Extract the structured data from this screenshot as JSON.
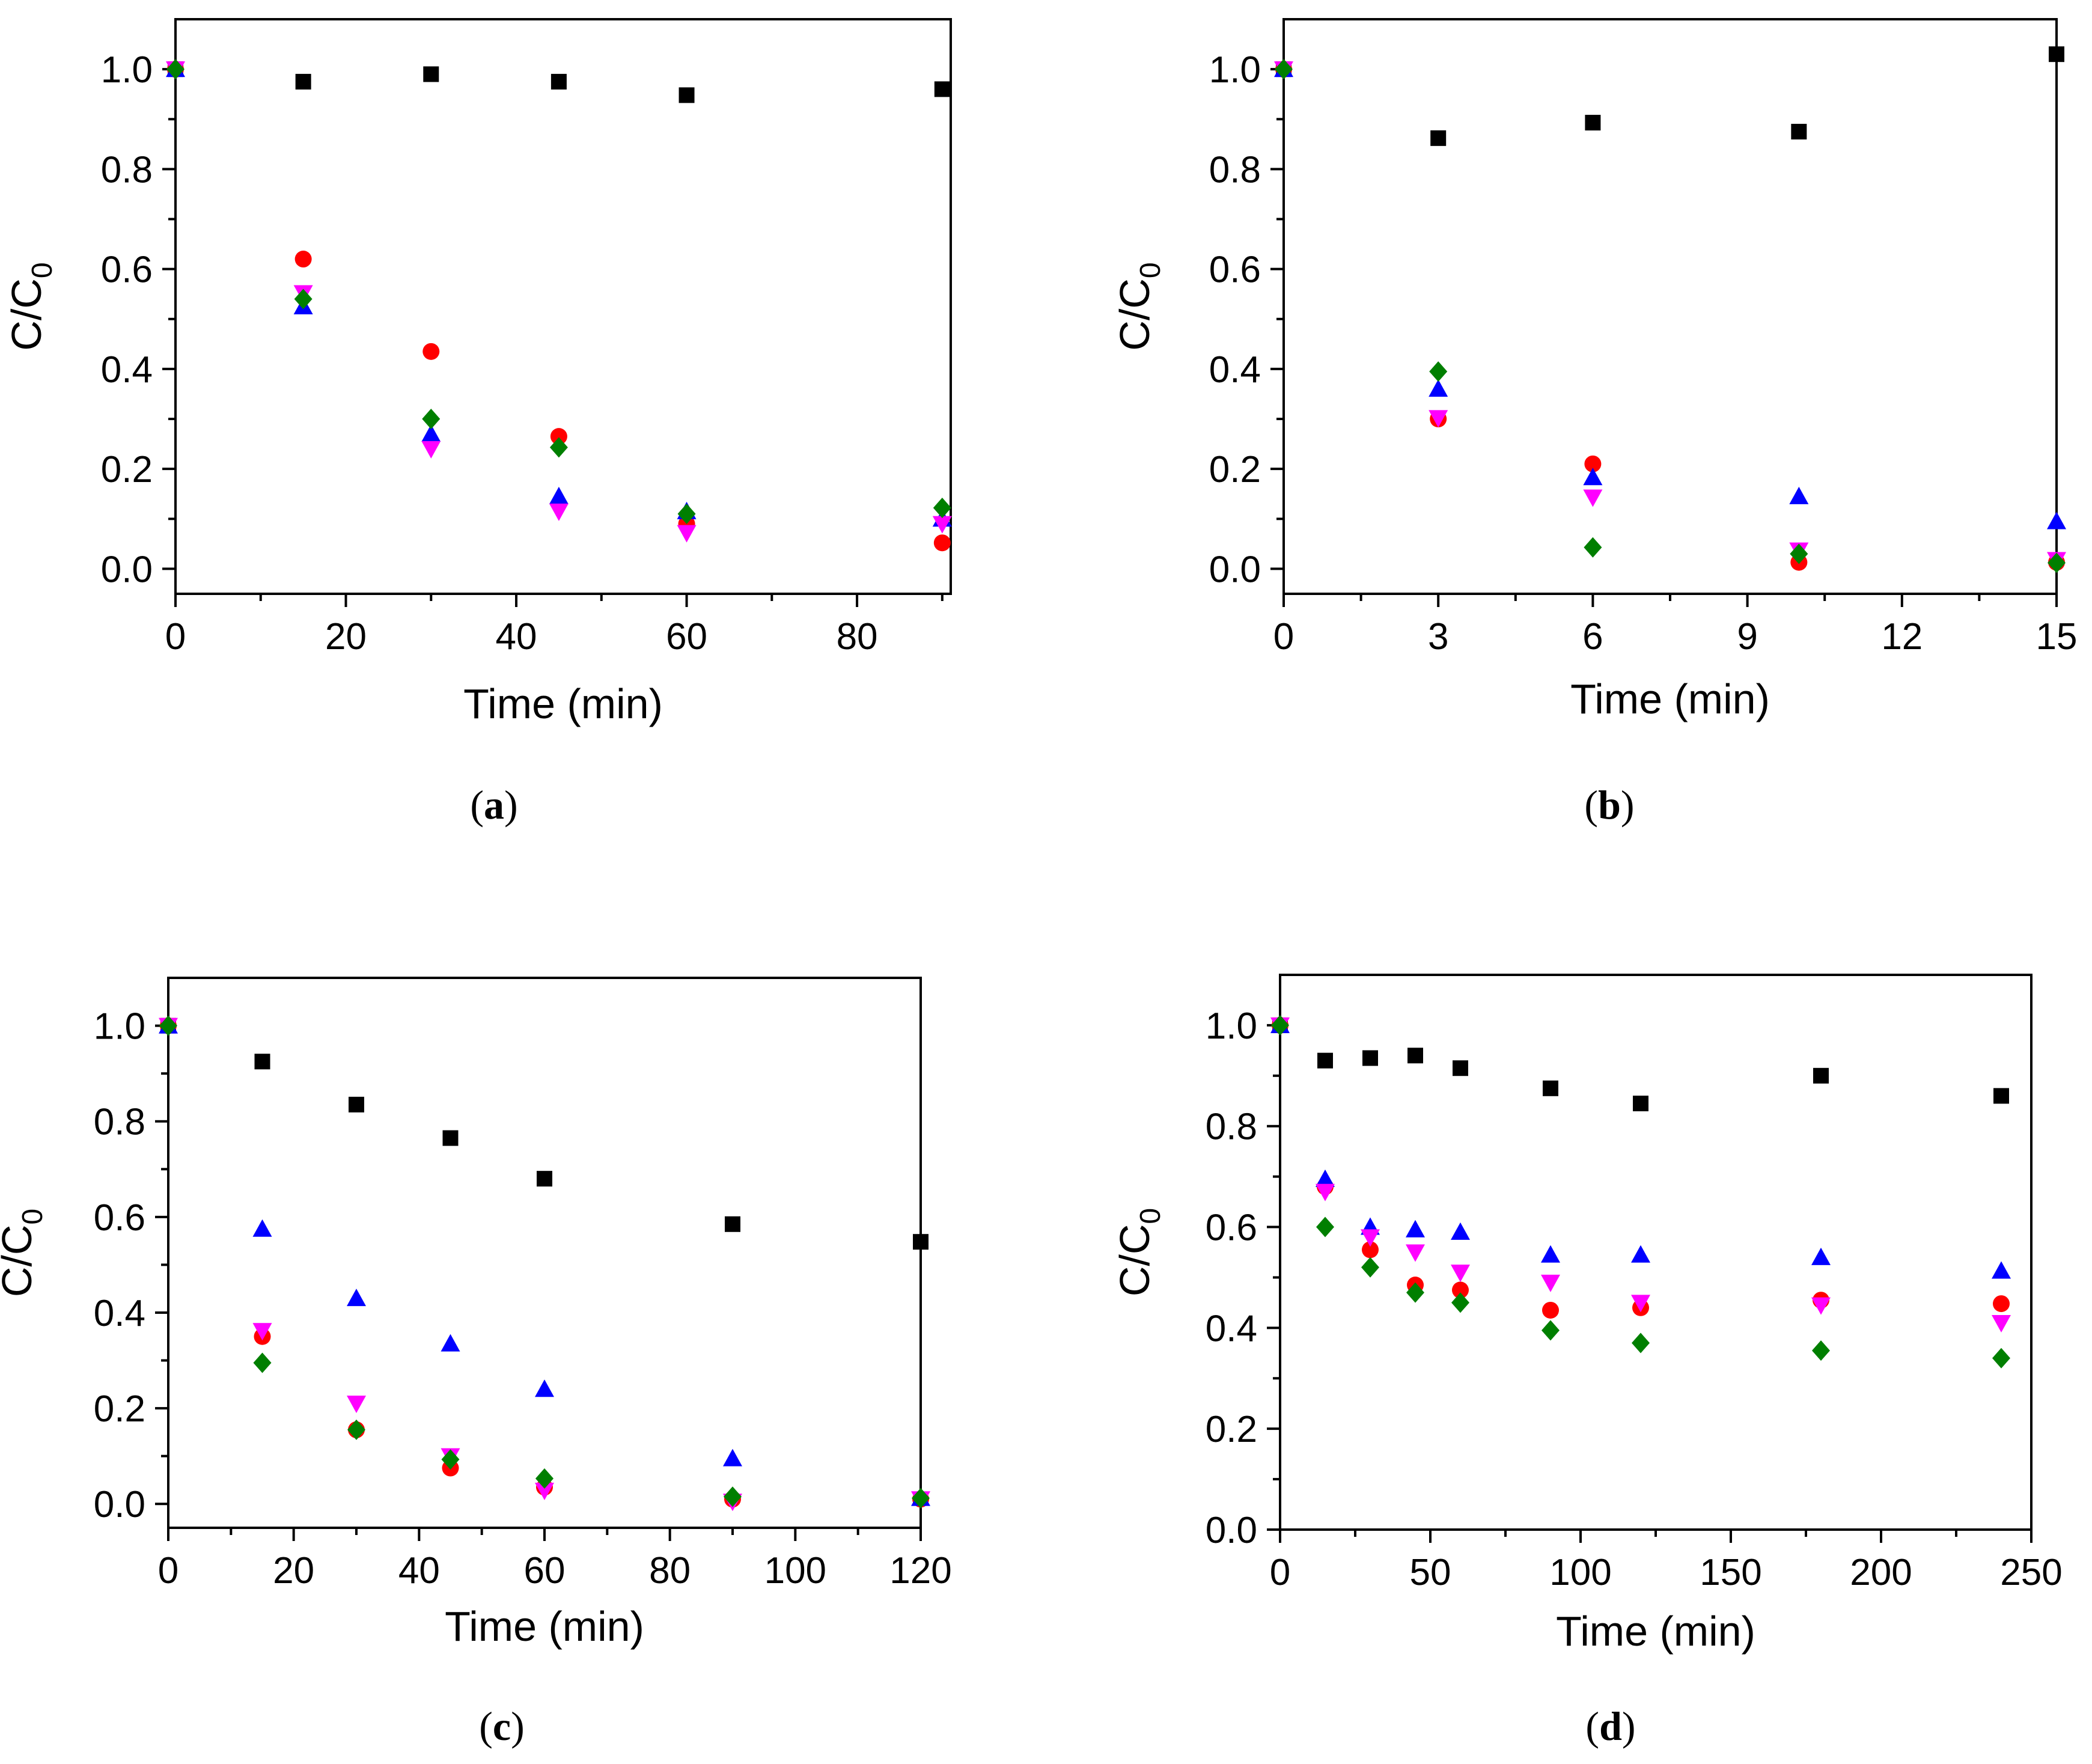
{
  "series_styles": [
    {
      "name": "series-1",
      "marker": "square",
      "color": "#000000"
    },
    {
      "name": "series-2",
      "marker": "circle",
      "color": "#ff0000"
    },
    {
      "name": "series-3",
      "marker": "triangle-up",
      "color": "#0000ff"
    },
    {
      "name": "series-4",
      "marker": "triangle-down",
      "color": "#ff00ff"
    },
    {
      "name": "series-5",
      "marker": "diamond",
      "color": "#007f00"
    }
  ],
  "chart_data": [
    {
      "panel": "a",
      "caption_open": "(",
      "caption_letter": "a",
      "caption_close": ")",
      "type": "scatter",
      "xlabel": "Time (min)",
      "ylabel_main": "C/C",
      "ylabel_sub": "0",
      "xlim": [
        0,
        91
      ],
      "ylim": [
        -0.05,
        1.1
      ],
      "xticks": [
        0,
        20,
        40,
        60,
        80
      ],
      "xtick_labels": [
        "0",
        "20",
        "40",
        "60",
        "80"
      ],
      "yticks": [
        0.0,
        0.2,
        0.4,
        0.6,
        0.8,
        1.0
      ],
      "ytick_labels": [
        "0.0",
        "0.2",
        "0.4",
        "0.6",
        "0.8",
        "1.0"
      ],
      "series": [
        {
          "name": "series-1",
          "x": [
            0,
            15,
            30,
            45,
            60,
            90
          ],
          "y": [
            1.0,
            0.975,
            0.99,
            0.975,
            0.948,
            0.96
          ]
        },
        {
          "name": "series-2",
          "x": [
            0,
            15,
            30,
            45,
            60,
            90
          ],
          "y": [
            1.0,
            0.62,
            0.435,
            0.265,
            0.09,
            0.052
          ]
        },
        {
          "name": "series-3",
          "x": [
            0,
            15,
            30,
            45,
            60,
            90
          ],
          "y": [
            1.0,
            0.525,
            0.27,
            0.145,
            0.115,
            0.1
          ]
        },
        {
          "name": "series-4",
          "x": [
            0,
            15,
            30,
            45,
            60,
            90
          ],
          "y": [
            1.0,
            0.552,
            0.24,
            0.115,
            0.072,
            0.09
          ]
        },
        {
          "name": "series-5",
          "x": [
            0,
            15,
            30,
            45,
            60,
            90
          ],
          "y": [
            1.0,
            0.54,
            0.3,
            0.243,
            0.11,
            0.122
          ]
        }
      ]
    },
    {
      "panel": "b",
      "caption_open": "(",
      "caption_letter": "b",
      "caption_close": ")",
      "type": "scatter",
      "xlabel": "Time (min)",
      "ylabel_main": "C/C",
      "ylabel_sub": "0",
      "xlim": [
        0,
        15
      ],
      "ylim": [
        -0.05,
        1.1
      ],
      "xticks": [
        0,
        3,
        6,
        9,
        12,
        15
      ],
      "xtick_labels": [
        "0",
        "3",
        "6",
        "9",
        "12",
        "15"
      ],
      "yticks": [
        0.0,
        0.2,
        0.4,
        0.6,
        0.8,
        1.0
      ],
      "ytick_labels": [
        "0.0",
        "0.2",
        "0.4",
        "0.6",
        "0.8",
        "1.0"
      ],
      "series": [
        {
          "name": "series-1",
          "x": [
            0,
            3,
            6,
            10,
            15
          ],
          "y": [
            1.0,
            0.862,
            0.893,
            0.875,
            1.03
          ]
        },
        {
          "name": "series-2",
          "x": [
            0,
            3,
            6,
            10,
            15
          ],
          "y": [
            1.0,
            0.3,
            0.21,
            0.013,
            0.013
          ]
        },
        {
          "name": "series-3",
          "x": [
            0,
            3,
            6,
            10,
            15
          ],
          "y": [
            1.0,
            0.36,
            0.183,
            0.145,
            0.095
          ]
        },
        {
          "name": "series-4",
          "x": [
            0,
            3,
            6,
            10,
            15
          ],
          "y": [
            1.0,
            0.302,
            0.143,
            0.037,
            0.018
          ]
        },
        {
          "name": "series-5",
          "x": [
            0,
            3,
            6,
            10,
            15
          ],
          "y": [
            1.0,
            0.395,
            0.043,
            0.03,
            0.012
          ]
        }
      ]
    },
    {
      "panel": "c",
      "caption_open": "(",
      "caption_letter": "c",
      "caption_close": ")",
      "type": "scatter",
      "xlabel": "Time (min)",
      "ylabel_main": "C/C",
      "ylabel_sub": "0",
      "xlim": [
        0,
        120
      ],
      "ylim": [
        -0.05,
        1.1
      ],
      "xticks": [
        0,
        20,
        40,
        60,
        80,
        100,
        120
      ],
      "xtick_labels": [
        "0",
        "20",
        "40",
        "60",
        "80",
        "100",
        "120"
      ],
      "yticks": [
        0.0,
        0.2,
        0.4,
        0.6,
        0.8,
        1.0
      ],
      "ytick_labels": [
        "0.0",
        "0.2",
        "0.4",
        "0.6",
        "0.8",
        "1.0"
      ],
      "series": [
        {
          "name": "series-1",
          "x": [
            0,
            15,
            30,
            45,
            60,
            90,
            120
          ],
          "y": [
            1.0,
            0.925,
            0.835,
            0.765,
            0.68,
            0.585,
            0.548
          ]
        },
        {
          "name": "series-2",
          "x": [
            0,
            15,
            30,
            45,
            60,
            90,
            120
          ],
          "y": [
            1.0,
            0.35,
            0.155,
            0.075,
            0.035,
            0.01,
            0.01
          ]
        },
        {
          "name": "series-3",
          "x": [
            0,
            15,
            30,
            45,
            60,
            90,
            120
          ],
          "y": [
            1.0,
            0.575,
            0.43,
            0.335,
            0.24,
            0.095,
            0.012
          ]
        },
        {
          "name": "series-4",
          "x": [
            0,
            15,
            30,
            45,
            60,
            90,
            120
          ],
          "y": [
            1.0,
            0.362,
            0.21,
            0.1,
            0.028,
            0.005,
            0.01
          ]
        },
        {
          "name": "series-5",
          "x": [
            0,
            15,
            30,
            45,
            60,
            90,
            120
          ],
          "y": [
            1.0,
            0.295,
            0.155,
            0.093,
            0.053,
            0.015,
            0.012
          ]
        }
      ]
    },
    {
      "panel": "d",
      "caption_open": "(",
      "caption_letter": "d",
      "caption_close": ")",
      "type": "scatter",
      "xlabel": "Time (min)",
      "ylabel_main": "C/C",
      "ylabel_sub": "0",
      "xlim": [
        0,
        250
      ],
      "ylim": [
        0,
        1.1
      ],
      "xticks": [
        0,
        50,
        100,
        150,
        200,
        250
      ],
      "xtick_labels": [
        "0",
        "50",
        "100",
        "150",
        "200",
        "250"
      ],
      "yticks": [
        0.0,
        0.2,
        0.4,
        0.6,
        0.8,
        1.0
      ],
      "ytick_labels": [
        "0.0",
        "0.2",
        "0.4",
        "0.6",
        "0.8",
        "1.0"
      ],
      "series": [
        {
          "name": "series-1",
          "x": [
            0,
            15,
            30,
            45,
            60,
            90,
            120,
            180,
            240
          ],
          "y": [
            1.0,
            0.93,
            0.935,
            0.94,
            0.915,
            0.875,
            0.845,
            0.9,
            0.86
          ]
        },
        {
          "name": "series-2",
          "x": [
            0,
            15,
            30,
            45,
            60,
            90,
            120,
            180,
            240
          ],
          "y": [
            1.0,
            0.68,
            0.555,
            0.485,
            0.475,
            0.435,
            0.44,
            0.455,
            0.448
          ]
        },
        {
          "name": "series-3",
          "x": [
            0,
            15,
            30,
            45,
            60,
            90,
            120,
            180,
            240
          ],
          "y": [
            1.0,
            0.695,
            0.6,
            0.595,
            0.59,
            0.545,
            0.545,
            0.54,
            0.513
          ]
        },
        {
          "name": "series-4",
          "x": [
            0,
            15,
            30,
            45,
            60,
            90,
            120,
            180,
            240
          ],
          "y": [
            1.0,
            0.67,
            0.58,
            0.55,
            0.51,
            0.49,
            0.45,
            0.445,
            0.41
          ]
        },
        {
          "name": "series-5",
          "x": [
            0,
            15,
            30,
            45,
            60,
            90,
            120,
            180,
            240
          ],
          "y": [
            1.0,
            0.6,
            0.52,
            0.47,
            0.45,
            0.395,
            0.37,
            0.355,
            0.34
          ]
        }
      ]
    }
  ]
}
